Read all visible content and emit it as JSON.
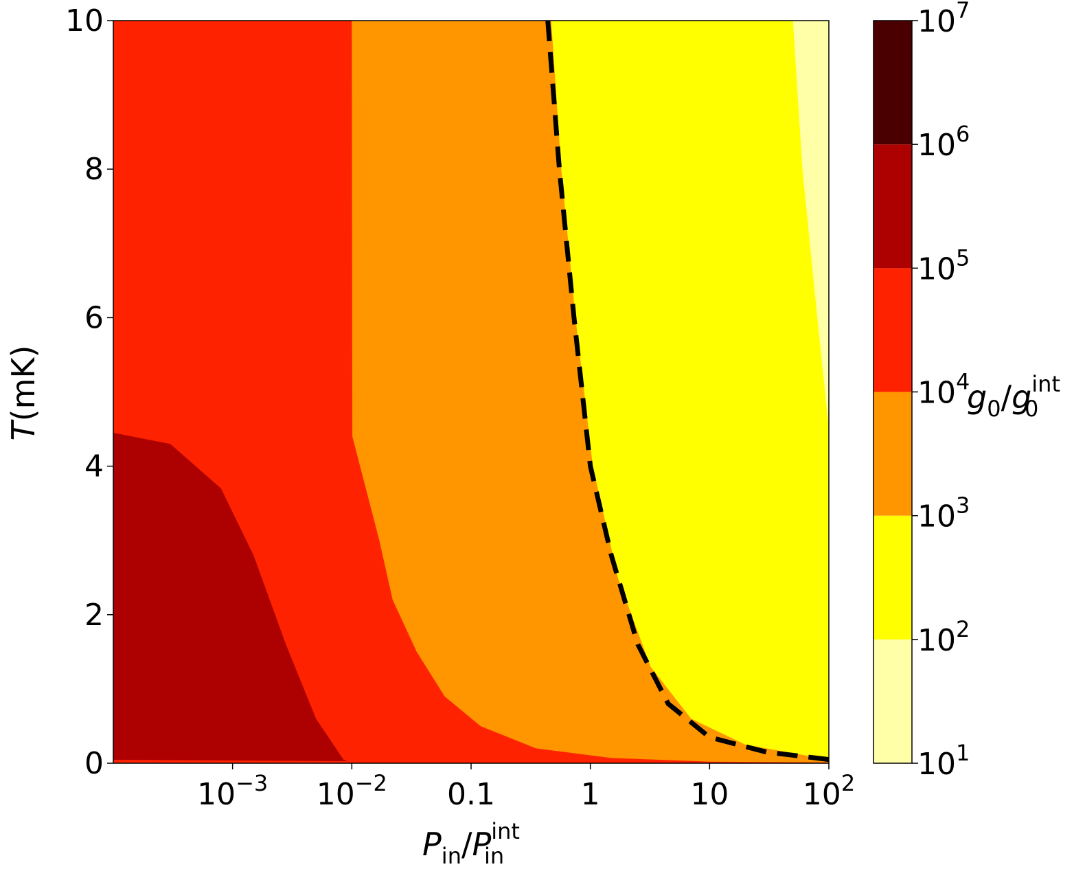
{
  "chart_data": {
    "type": "contour",
    "x_scale": "log",
    "xlim": [
      0.0001,
      100
    ],
    "ylim": [
      0,
      10
    ],
    "xlabel": {
      "main": "P",
      "sub1": "in",
      "sep": "/",
      "main2": "P",
      "sup2": "int",
      "sub2": "in"
    },
    "ylabel": {
      "main": "T",
      "unit": "(mK)"
    },
    "x_ticks": [
      {
        "value": 0.001,
        "base": "10",
        "exp": "−3"
      },
      {
        "value": 0.01,
        "base": "10",
        "exp": "−2"
      },
      {
        "value": 0.1,
        "label": "0.1"
      },
      {
        "value": 1,
        "label": "1"
      },
      {
        "value": 10,
        "label": "10"
      },
      {
        "value": 100,
        "base": "10",
        "exp": "2"
      }
    ],
    "y_ticks": [
      {
        "value": 0,
        "label": "0"
      },
      {
        "value": 2,
        "label": "2"
      },
      {
        "value": 4,
        "label": "4"
      },
      {
        "value": 6,
        "label": "6"
      },
      {
        "value": 8,
        "label": "8"
      },
      {
        "value": 10,
        "label": "10"
      }
    ],
    "colorbar": {
      "label": {
        "main": "g",
        "sub1": "0",
        "sep": "/",
        "main2": "g",
        "sup2": "int",
        "sub2": "0"
      },
      "scale": "log",
      "levels": [
        {
          "base": "10",
          "exp": "1",
          "value": 10
        },
        {
          "base": "10",
          "exp": "2",
          "value": 100
        },
        {
          "base": "10",
          "exp": "3",
          "value": 1000
        },
        {
          "base": "10",
          "exp": "4",
          "value": 10000
        },
        {
          "base": "10",
          "exp": "5",
          "value": 100000
        },
        {
          "base": "10",
          "exp": "6",
          "value": 1000000
        },
        {
          "base": "10",
          "exp": "7",
          "value": 10000000
        }
      ],
      "colors": [
        "#ffffa8",
        "#ffff00",
        "#ff9600",
        "#ff2200",
        "#ad0000",
        "#4a0000"
      ]
    },
    "regions": [
      {
        "range": "10^2–10^3",
        "color": "#ffff00",
        "boundary": [
          [
            0.47,
            10
          ],
          [
            0.57,
            8
          ],
          [
            0.75,
            6
          ],
          [
            1.05,
            4
          ],
          [
            1.7,
            2.5
          ],
          [
            3.2,
            1.3
          ],
          [
            7,
            0.6
          ],
          [
            20,
            0.25
          ],
          [
            100,
            0.05
          ]
        ]
      },
      {
        "range": "10^1–10^2",
        "color": "#ffffa8",
        "boundary": [
          [
            50,
            10
          ],
          [
            60,
            8
          ],
          [
            80,
            6
          ],
          [
            100,
            4.5
          ]
        ]
      },
      {
        "range": "10^4–10^5",
        "color": "#ff2200",
        "boundary": [
          [
            0.01,
            10
          ],
          [
            0.0101,
            4.4
          ],
          [
            0.017,
            3.0
          ],
          [
            0.022,
            2.2
          ],
          [
            0.035,
            1.5
          ],
          [
            0.06,
            0.9
          ],
          [
            0.12,
            0.5
          ],
          [
            0.35,
            0.2
          ],
          [
            1.5,
            0.07
          ],
          [
            10,
            0.02
          ],
          [
            100,
            0.01
          ]
        ]
      },
      {
        "range": "10^5–10^6",
        "color": "#ad0000",
        "boundary": [
          [
            0.0001,
            4.45
          ],
          [
            0.0003,
            4.3
          ],
          [
            0.0008,
            3.7
          ],
          [
            0.0015,
            2.8
          ],
          [
            0.0028,
            1.6
          ],
          [
            0.005,
            0.6
          ],
          [
            0.0085,
            0.05
          ],
          [
            0.01,
            0
          ]
        ]
      }
    ],
    "dashed_line": [
      [
        0.44,
        10
      ],
      [
        0.55,
        8
      ],
      [
        0.73,
        6
      ],
      [
        1.0,
        4.0
      ],
      [
        1.5,
        2.8
      ],
      [
        2.5,
        1.6
      ],
      [
        4.5,
        0.8
      ],
      [
        10,
        0.35
      ],
      [
        30,
        0.15
      ],
      [
        100,
        0.05
      ]
    ]
  }
}
